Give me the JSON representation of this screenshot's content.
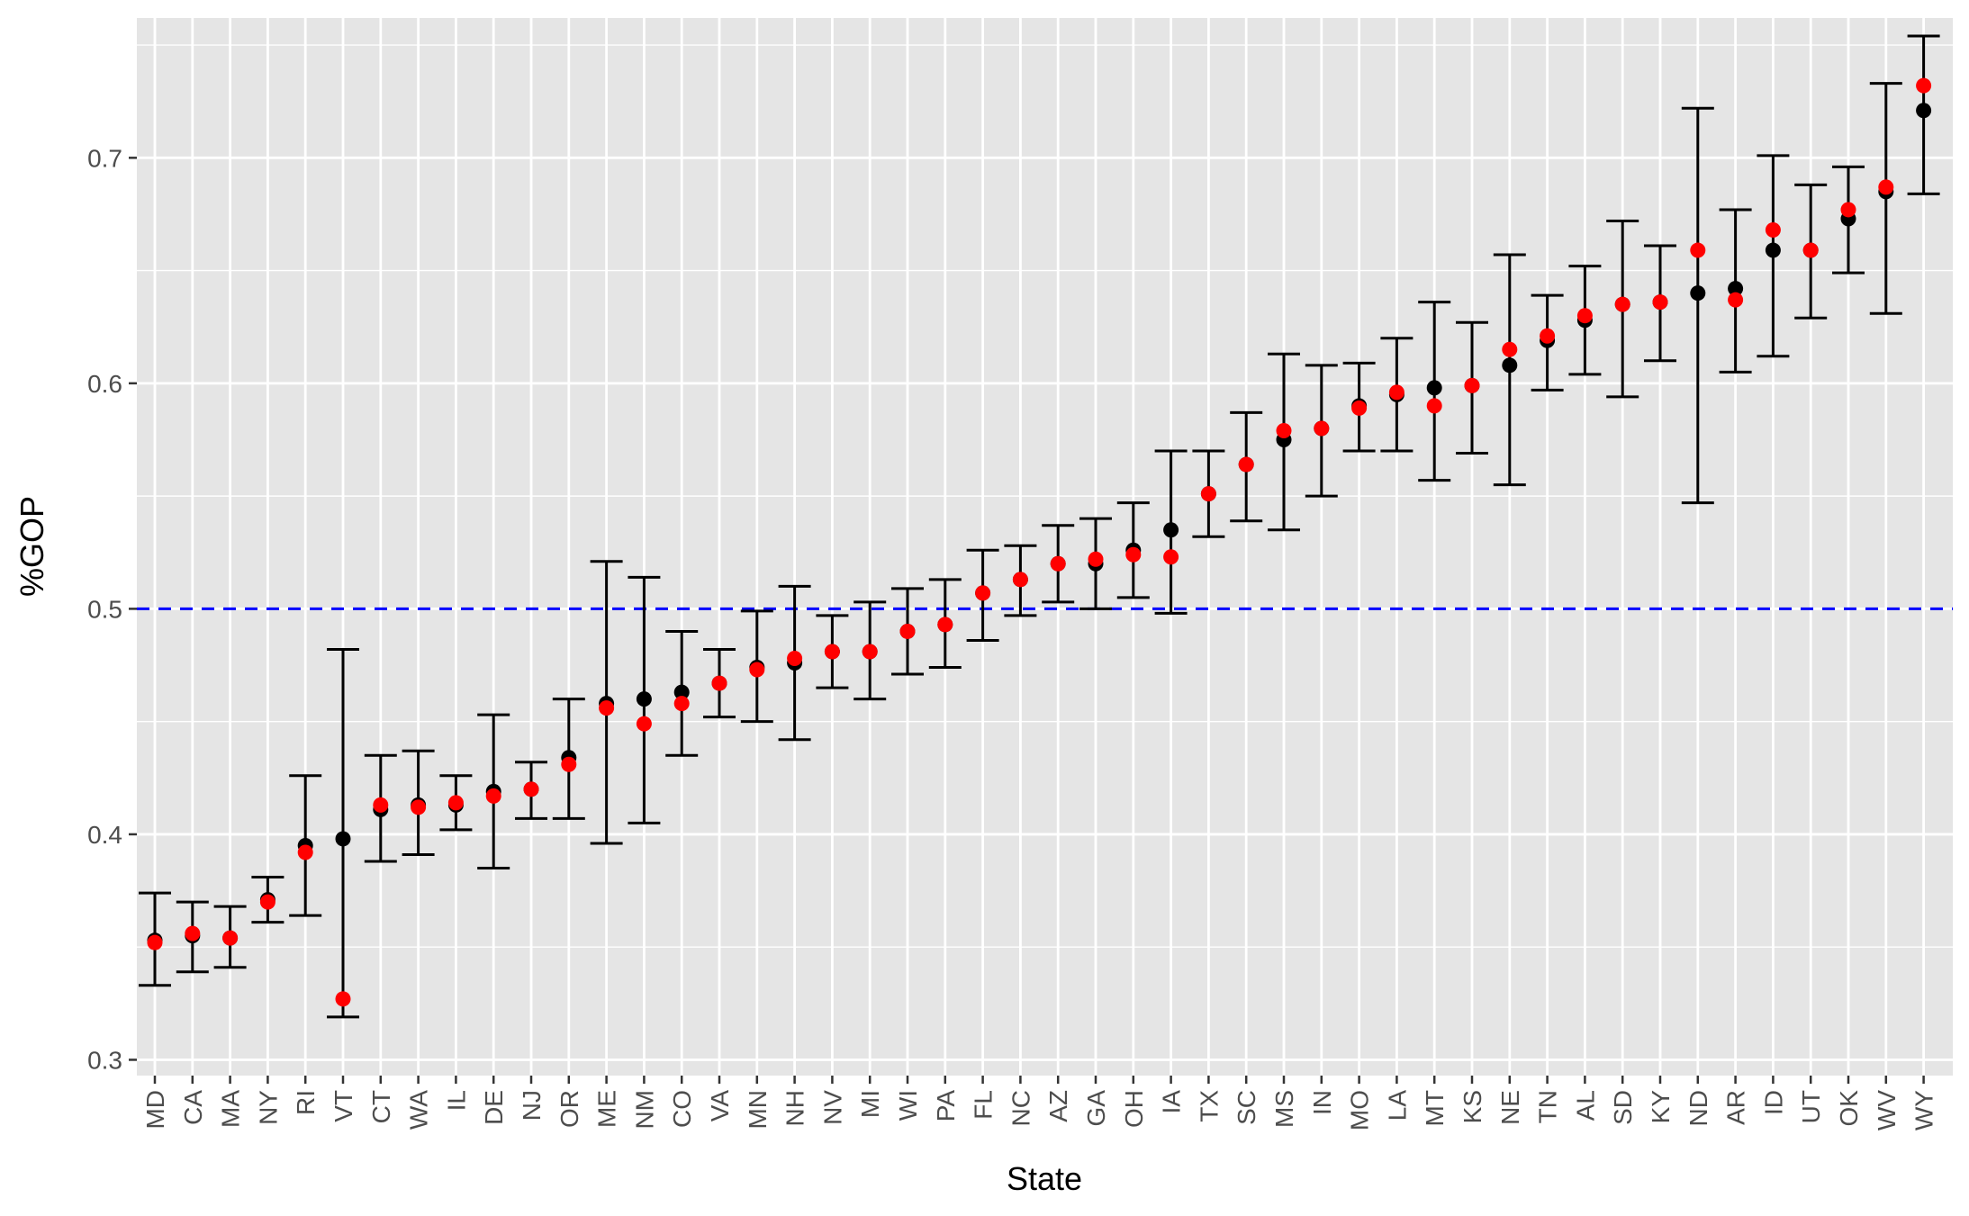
{
  "chart_data": {
    "type": "scatter",
    "xlabel": "State",
    "ylabel": "%GOP",
    "ylim": [
      0.293,
      0.762
    ],
    "y_ticks": [
      "0.3",
      "0.4",
      "0.5",
      "0.6",
      "0.7"
    ],
    "reference_line": {
      "y": 0.5,
      "color": "#0000ff",
      "style": "dashed"
    },
    "grid": true,
    "categories": [
      "MD",
      "CA",
      "MA",
      "NY",
      "RI",
      "VT",
      "CT",
      "WA",
      "IL",
      "DE",
      "NJ",
      "OR",
      "ME",
      "NM",
      "CO",
      "VA",
      "MN",
      "NH",
      "NV",
      "MI",
      "WI",
      "PA",
      "FL",
      "NC",
      "AZ",
      "GA",
      "OH",
      "IA",
      "TX",
      "SC",
      "MS",
      "IN",
      "MO",
      "LA",
      "MT",
      "KS",
      "NE",
      "TN",
      "AL",
      "SD",
      "KY",
      "ND",
      "AR",
      "ID",
      "UT",
      "OK",
      "WV",
      "WY"
    ],
    "series": [
      {
        "color": "#000000",
        "values": [
          0.353,
          0.355,
          0.354,
          0.371,
          0.395,
          0.398,
          0.411,
          0.413,
          0.413,
          0.419,
          0.42,
          0.434,
          0.458,
          0.46,
          0.463,
          0.467,
          0.474,
          0.476,
          0.481,
          0.481,
          0.49,
          0.493,
          0.507,
          0.513,
          0.52,
          0.52,
          0.526,
          0.535,
          0.551,
          0.564,
          0.575,
          0.58,
          0.59,
          0.595,
          0.598,
          0.599,
          0.608,
          0.619,
          0.628,
          0.635,
          0.636,
          0.64,
          0.642,
          0.659,
          0.659,
          0.673,
          0.685,
          0.721
        ],
        "lower": [
          0.333,
          0.339,
          0.341,
          0.361,
          0.364,
          0.319,
          0.388,
          0.391,
          0.402,
          0.385,
          0.407,
          0.407,
          0.396,
          0.405,
          0.435,
          0.452,
          0.45,
          0.442,
          0.465,
          0.46,
          0.471,
          0.474,
          0.486,
          0.497,
          0.503,
          0.5,
          0.505,
          0.498,
          0.532,
          0.539,
          0.535,
          0.55,
          0.57,
          0.57,
          0.557,
          0.569,
          0.555,
          0.597,
          0.604,
          0.594,
          0.61,
          0.547,
          0.605,
          0.612,
          0.629,
          0.649,
          0.631,
          0.684
        ],
        "upper": [
          0.374,
          0.37,
          0.368,
          0.381,
          0.426,
          0.482,
          0.435,
          0.437,
          0.426,
          0.453,
          0.432,
          0.46,
          0.521,
          0.514,
          0.49,
          0.482,
          0.499,
          0.51,
          0.497,
          0.503,
          0.509,
          0.513,
          0.526,
          0.528,
          0.537,
          0.54,
          0.547,
          0.57,
          0.57,
          0.587,
          0.613,
          0.608,
          0.609,
          0.62,
          0.636,
          0.627,
          0.657,
          0.639,
          0.652,
          0.672,
          0.661,
          0.722,
          0.677,
          0.701,
          0.688,
          0.696,
          0.733,
          0.754
        ]
      },
      {
        "color": "#ff0000",
        "values": [
          0.352,
          0.356,
          0.354,
          0.37,
          0.392,
          0.327,
          0.413,
          0.412,
          0.414,
          0.417,
          0.42,
          0.431,
          0.456,
          0.449,
          0.458,
          0.467,
          0.473,
          0.478,
          0.481,
          0.481,
          0.49,
          0.493,
          0.507,
          0.513,
          0.52,
          0.522,
          0.524,
          0.523,
          0.551,
          0.564,
          0.579,
          0.58,
          0.589,
          0.596,
          0.59,
          0.599,
          0.615,
          0.621,
          0.63,
          0.635,
          0.636,
          0.659,
          0.637,
          0.668,
          0.659,
          0.677,
          0.687,
          0.732
        ]
      }
    ]
  }
}
